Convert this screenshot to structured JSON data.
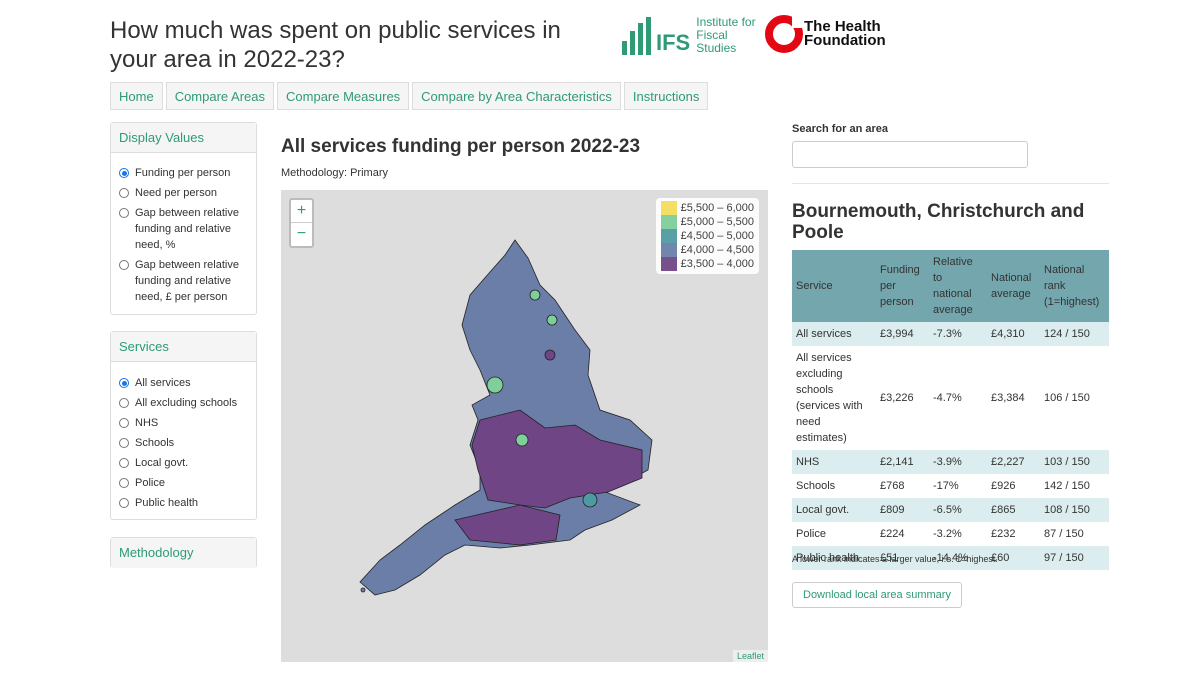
{
  "header": {
    "title": "How much was spent on public services in your area in 2022-23?",
    "ifs_mark": "IFS",
    "ifs_name": "Institute for Fiscal Studies",
    "hf_name": "The Health Foundation"
  },
  "nav": [
    "Home",
    "Compare Areas",
    "Compare Measures",
    "Compare by Area Characteristics",
    "Instructions"
  ],
  "display_values": {
    "title": "Display Values",
    "selected": 0,
    "options": [
      "Funding per person",
      "Need per person",
      "Gap between relative funding and relative need, %",
      "Gap between relative funding and relative need, £ per person"
    ]
  },
  "services": {
    "title": "Services",
    "selected": 0,
    "options": [
      "All services",
      "All excluding schools",
      "NHS",
      "Schools",
      "Local govt.",
      "Police",
      "Public health"
    ]
  },
  "methodology": {
    "title": "Methodology"
  },
  "map": {
    "title": "All services funding per person 2022-23",
    "subtitle": "Methodology: Primary",
    "zoom_in": "+",
    "zoom_out": "−",
    "attribution": "Leaflet",
    "legend": [
      {
        "label": "£5,500 – 6,000",
        "color": "#f6e05a"
      },
      {
        "label": "£5,000 – 5,500",
        "color": "#7fcf9a"
      },
      {
        "label": "£4,500 – 5,000",
        "color": "#4d9aa3"
      },
      {
        "label": "£4,000 – 4,500",
        "color": "#6a7ea8"
      },
      {
        "label": "£3,500 – 4,000",
        "color": "#6f4585"
      }
    ]
  },
  "search": {
    "label": "Search for an area"
  },
  "area": {
    "name": "Bournemouth, Christchurch and Poole",
    "table": {
      "headers": [
        "Service",
        "Funding per person",
        "Relative to national average",
        "National average",
        "National rank (1=highest)"
      ],
      "rows": [
        [
          "All services",
          "£3,994",
          "-7.3%",
          "£4,310",
          "124 / 150"
        ],
        [
          "All services excluding schools (services with need estimates)",
          "£3,226",
          "-4.7%",
          "£3,384",
          "106 / 150"
        ],
        [
          "NHS",
          "£2,141",
          "-3.9%",
          "£2,227",
          "103 / 150"
        ],
        [
          "Schools",
          "£768",
          "-17%",
          "£926",
          "142 / 150"
        ],
        [
          "Local govt.",
          "£809",
          "-6.5%",
          "£865",
          "108 / 150"
        ],
        [
          "Police",
          "£224",
          "-3.2%",
          "£232",
          "87 / 150"
        ],
        [
          "Public health",
          "£51",
          "-14.4%",
          "£60",
          "97 / 150"
        ]
      ]
    },
    "note": "A lower rank indicates a larger value, i.e. 1=highest.",
    "button": "Download local area summary"
  }
}
